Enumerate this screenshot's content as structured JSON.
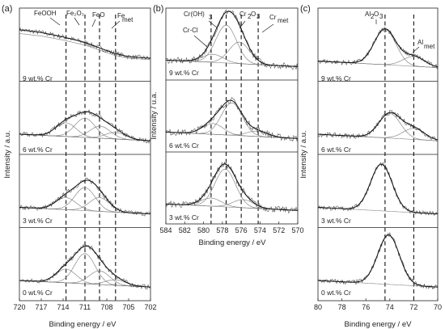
{
  "chart_data": [
    {
      "type": "line",
      "panel": "(a)",
      "xlabel": "Binding energy / eV",
      "ylabel": "Intensity / a.u.",
      "xlim": [
        720,
        702
      ],
      "xticks": [
        720,
        717,
        714,
        711,
        708,
        705,
        702
      ],
      "reference_lines": [
        713.6,
        711.0,
        709.0,
        706.8
      ],
      "annotations": [
        "FeOOH",
        "Fe₂O₃",
        "FeO",
        "Fe",
        "met"
      ],
      "stacks": [
        {
          "label": "9 wt.% Cr",
          "envelope": {
            "x": [
              720,
              717,
              714,
              711,
              709,
              707,
              705,
              702
            ],
            "y": [
              0.85,
              0.8,
              0.72,
              0.62,
              0.52,
              0.42,
              0.36,
              0.33
            ]
          }
        },
        {
          "label": "6 wt.% Cr",
          "components": [
            {
              "center": 713.6,
              "height": 0.25
            },
            {
              "center": 711.0,
              "height": 0.35
            },
            {
              "center": 708.9,
              "height": 0.22
            },
            {
              "center": 706.8,
              "height": 0.12
            }
          ]
        },
        {
          "label": "3 wt.% Cr",
          "components": [
            {
              "center": 713.6,
              "height": 0.22
            },
            {
              "center": 711.0,
              "height": 0.42
            },
            {
              "center": 709.0,
              "height": 0.25
            }
          ]
        },
        {
          "label": "0 wt.% Cr",
          "components": [
            {
              "center": 713.6,
              "height": 0.25
            },
            {
              "center": 711.0,
              "height": 0.55
            },
            {
              "center": 709.0,
              "height": 0.25
            },
            {
              "center": 706.8,
              "height": 0.1
            }
          ]
        }
      ]
    },
    {
      "type": "line",
      "panel": "(b)",
      "xlabel": "Binding energy / eV",
      "ylabel": "Intensity / u.a.",
      "xlim": [
        584,
        570
      ],
      "xticks": [
        584,
        582,
        580,
        578,
        576,
        574,
        572,
        570
      ],
      "reference_lines": [
        579.2,
        577.6,
        576.0,
        574.2
      ],
      "annotations": [
        "Cr(OH)",
        "3",
        "Cr",
        "2",
        "O",
        "3",
        "Cr-Cl",
        "Cr",
        "met"
      ],
      "stacks": [
        {
          "label": "9 wt.% Cr",
          "components": [
            {
              "center": 577.6,
              "height": 0.7
            },
            {
              "center": 576.2,
              "height": 0.4
            },
            {
              "center": 579.0,
              "height": 0.15
            }
          ]
        },
        {
          "label": "6 wt.% Cr",
          "components": [
            {
              "center": 577.0,
              "height": 0.6
            },
            {
              "center": 579.0,
              "height": 0.2
            },
            {
              "center": 574.3,
              "height": 0.1
            }
          ]
        },
        {
          "label": "3 wt.% Cr",
          "components": [
            {
              "center": 577.7,
              "height": 0.7
            },
            {
              "center": 579.2,
              "height": 0.15
            },
            {
              "center": 575.8,
              "height": 0.15
            }
          ]
        }
      ]
    },
    {
      "type": "line",
      "panel": "(c)",
      "xlabel": "Binding energy / eV",
      "ylabel": "Intensity / a.u.",
      "xlim": [
        80,
        70
      ],
      "xticks": [
        80,
        78,
        76,
        74,
        72,
        70
      ],
      "reference_lines": [
        74.4,
        72.0
      ],
      "annotations": [
        "Al",
        "2",
        "O",
        "3",
        "Al",
        "met"
      ],
      "stacks": [
        {
          "label": "9 wt.% Cr",
          "components": [
            {
              "center": 74.4,
              "height": 0.65
            },
            {
              "center": 72.0,
              "height": 0.18
            }
          ]
        },
        {
          "label": "6 wt.% Cr",
          "components": [
            {
              "center": 74.0,
              "height": 0.45
            },
            {
              "center": 72.0,
              "height": 0.2
            }
          ]
        },
        {
          "label": "3 wt.% Cr",
          "components": [
            {
              "center": 74.7,
              "height": 0.85
            }
          ]
        },
        {
          "label": "0 wt.% Cr",
          "components": [
            {
              "center": 74.1,
              "height": 0.9
            }
          ]
        }
      ]
    }
  ]
}
